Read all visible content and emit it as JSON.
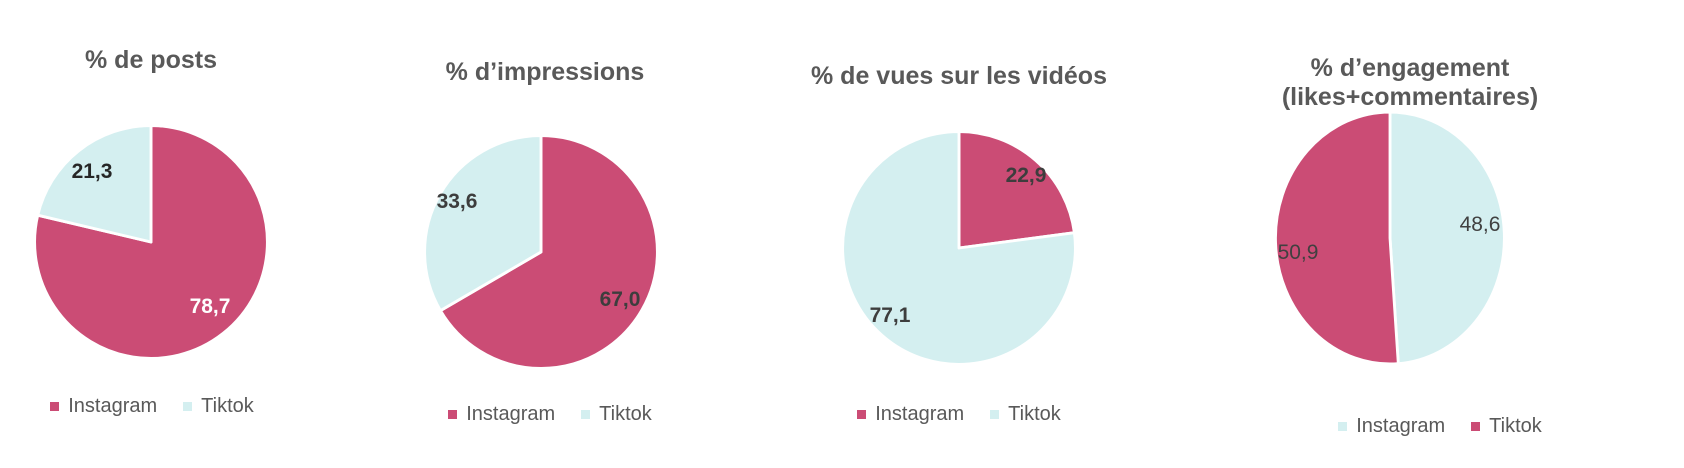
{
  "page": {
    "background": "#ffffff"
  },
  "chart_data": [
    {
      "type": "pie",
      "title": "% de posts",
      "unit": "%",
      "start_angle": 0,
      "direction": "clockwise",
      "legend_position": "bottom",
      "slices": [
        {
          "name": "Instagram",
          "value": 78.7,
          "display": "78,7",
          "color": "#cb4c75",
          "label_color": "#ffffff"
        },
        {
          "name": "Tiktok",
          "value": 21.3,
          "display": "21,3",
          "color": "#d4eff0",
          "label_color": "#262626"
        }
      ]
    },
    {
      "type": "pie",
      "title": "% d’impressions",
      "unit": "%",
      "start_angle": 0,
      "direction": "clockwise",
      "legend_position": "bottom",
      "slices": [
        {
          "name": "Instagram",
          "value": 67.0,
          "display": "67,0",
          "color": "#cb4c75",
          "label_color": "#3d3d3d"
        },
        {
          "name": "Tiktok",
          "value": 33.6,
          "display": "33,6",
          "color": "#d4eff0",
          "label_color": "#3d3d3d"
        }
      ]
    },
    {
      "type": "pie",
      "title": "% de vues sur les vidéos",
      "unit": "%",
      "start_angle": 0,
      "direction": "clockwise",
      "legend_position": "bottom",
      "slices": [
        {
          "name": "Instagram",
          "value": 22.9,
          "display": "22,9",
          "color": "#cb4c75",
          "label_color": "#3d3d3d"
        },
        {
          "name": "Tiktok",
          "value": 77.1,
          "display": "77,1",
          "color": "#d4eff0",
          "label_color": "#3d3d3d"
        }
      ]
    },
    {
      "type": "pie",
      "title": "% d’engagement (likes+commentaires)",
      "unit": "%",
      "start_angle": 0,
      "direction": "clockwise",
      "legend_position": "bottom",
      "slices": [
        {
          "name": "Instagram",
          "value": 48.6,
          "display": "48,6",
          "color": "#d4eff0",
          "label_color": "#404040"
        },
        {
          "name": "Tiktok",
          "value": 50.9,
          "display": "50,9",
          "color": "#cb4c75",
          "label_color": "#404040"
        }
      ]
    }
  ]
}
